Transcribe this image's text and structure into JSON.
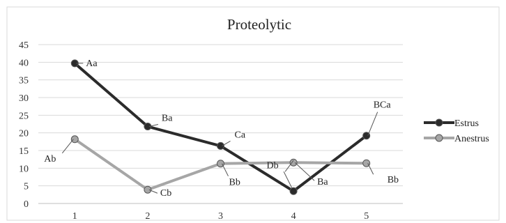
{
  "chart_data": {
    "type": "line",
    "title": "Proteolytic",
    "categories": [
      "1",
      "2",
      "3",
      "4",
      "5"
    ],
    "ylim": [
      0,
      45
    ],
    "yticks": [
      0,
      5,
      10,
      15,
      20,
      25,
      30,
      35,
      40,
      45
    ],
    "grid": true,
    "legend_position": "right",
    "series": [
      {
        "name": "Estrus",
        "color": "#2b2b2b",
        "values": [
          39.7,
          21.8,
          16.3,
          3.5,
          19.2
        ],
        "labels": [
          "Aa",
          "Ba",
          "Ca",
          "Db",
          "BCa"
        ]
      },
      {
        "name": "Anestrus",
        "color": "#a6a6a6",
        "values": [
          18.2,
          3.9,
          11.3,
          11.6,
          11.4
        ],
        "labels": [
          "Ab",
          "Cb",
          "Bb",
          "Ba",
          "Bb"
        ]
      }
    ]
  }
}
